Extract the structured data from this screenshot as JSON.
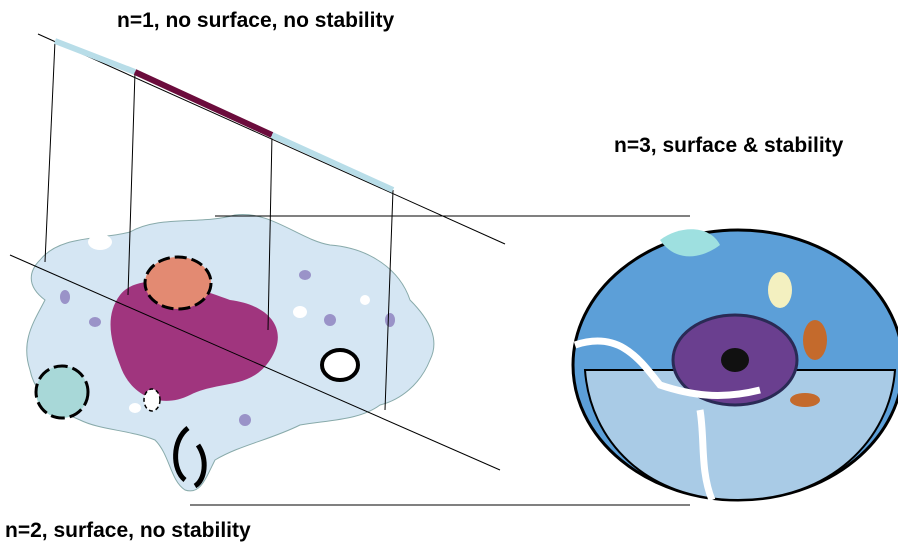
{
  "labels": {
    "n1": "n=1, no surface, no stability",
    "n3": "n=3, surface & stability",
    "n2": "n=2, surface, no stability"
  }
}
